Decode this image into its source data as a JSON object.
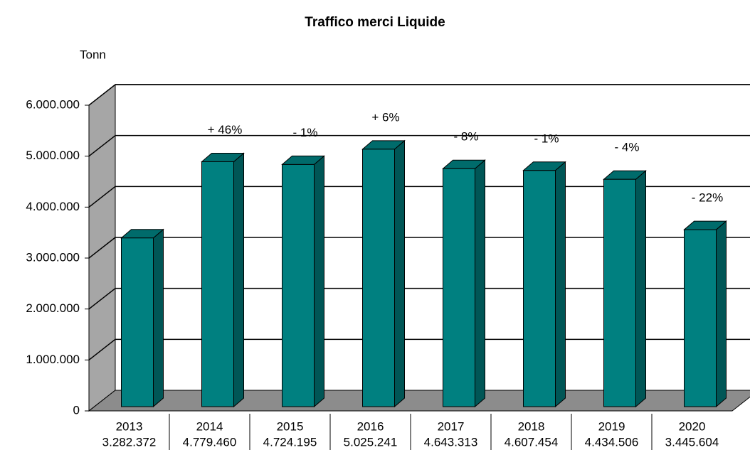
{
  "chart_data": {
    "type": "bar3d",
    "title": "Traffico merci Liquide",
    "y_label": "Tonn",
    "categories": [
      "2013",
      "2014",
      "2015",
      "2016",
      "2017",
      "2018",
      "2019",
      "2020"
    ],
    "values": [
      3282372,
      4779460,
      4724195,
      5025241,
      4643313,
      4607454,
      4434506,
      3445604
    ],
    "value_labels": [
      "3.282.372",
      "4.779.460",
      "4.724.195",
      "5.025.241",
      "4.643.313",
      "4.607.454",
      "4.434.506",
      "3.445.604"
    ],
    "changes": [
      null,
      "+ 46%",
      "- 1%",
      "+ 6%",
      "- 8%",
      "- 1%",
      "- 4%",
      "- 22%"
    ],
    "color": "#008080",
    "ylim": [
      0,
      6000000
    ],
    "yticks": [
      0,
      {
        "value": 1000000,
        "label": "1.000.000"
      },
      {
        "value": 2000000,
        "label": "2.000.000"
      },
      {
        "value": 3000000,
        "label": "3.000.000"
      },
      {
        "value": 4000000,
        "label": "4.000.000"
      },
      {
        "value": 5000000,
        "label": "5.000.000"
      },
      {
        "value": 6000000,
        "label": "6.000.000"
      }
    ],
    "grid": true
  }
}
